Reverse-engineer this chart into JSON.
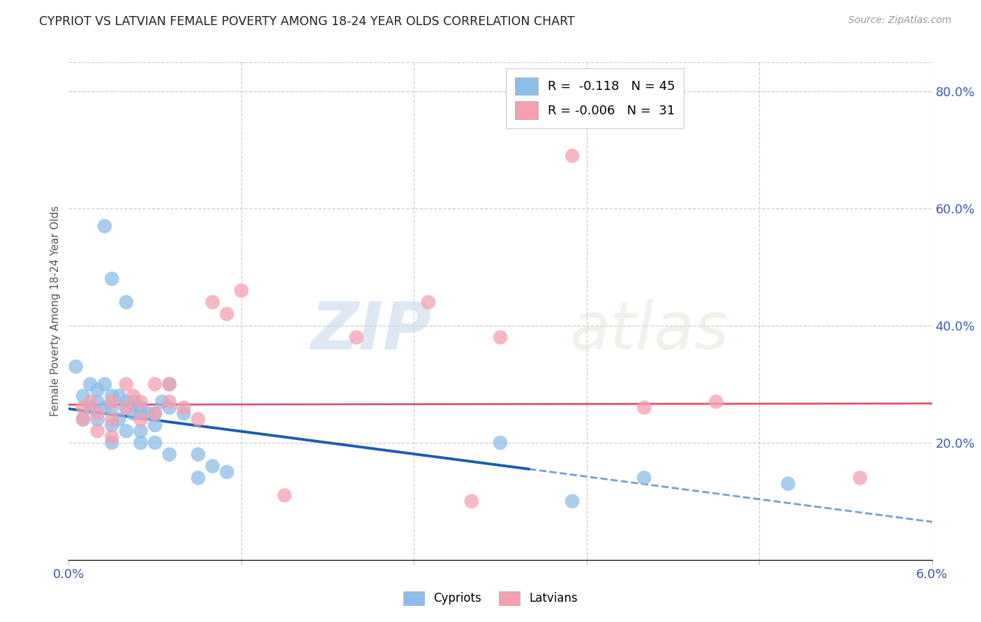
{
  "title": "CYPRIOT VS LATVIAN FEMALE POVERTY AMONG 18-24 YEAR OLDS CORRELATION CHART",
  "source": "Source: ZipAtlas.com",
  "ylabel": "Female Poverty Among 18-24 Year Olds",
  "xlim": [
    0.0,
    0.06
  ],
  "ylim": [
    0.0,
    0.85
  ],
  "xticks": [
    0.0,
    0.012,
    0.024,
    0.036,
    0.048,
    0.06
  ],
  "xticklabels": [
    "0.0%",
    "",
    "",
    "",
    "",
    "6.0%"
  ],
  "yticks_right": [
    0.2,
    0.4,
    0.6,
    0.8
  ],
  "ytick_right_labels": [
    "20.0%",
    "40.0%",
    "60.0%",
    "80.0%"
  ],
  "grid_color": "#cccccc",
  "background_color": "#ffffff",
  "cypriot_color": "#8bbde8",
  "latvian_color": "#f4a0b0",
  "cypriot_line_color": "#1a5cb0",
  "latvian_line_color": "#e05070",
  "legend_label_cypriot": "Cypriots",
  "legend_label_latvian": "Latvians",
  "R_cypriot": -0.118,
  "N_cypriot": 45,
  "R_latvian": -0.006,
  "N_latvian": 31,
  "watermark_zip": "ZIP",
  "watermark_atlas": "atlas",
  "cypriot_x": [
    0.0005,
    0.001,
    0.001,
    0.0015,
    0.0015,
    0.002,
    0.002,
    0.002,
    0.0025,
    0.0025,
    0.003,
    0.003,
    0.003,
    0.003,
    0.0035,
    0.0035,
    0.004,
    0.004,
    0.004,
    0.0045,
    0.0045,
    0.005,
    0.005,
    0.005,
    0.0055,
    0.006,
    0.006,
    0.0065,
    0.007,
    0.007,
    0.008,
    0.009,
    0.009,
    0.01,
    0.011,
    0.0025,
    0.003,
    0.004,
    0.005,
    0.006,
    0.007,
    0.03,
    0.04,
    0.05,
    0.035
  ],
  "cypriot_y": [
    0.33,
    0.28,
    0.24,
    0.3,
    0.26,
    0.29,
    0.27,
    0.24,
    0.3,
    0.26,
    0.28,
    0.26,
    0.23,
    0.2,
    0.28,
    0.24,
    0.27,
    0.26,
    0.22,
    0.27,
    0.25,
    0.26,
    0.25,
    0.22,
    0.25,
    0.25,
    0.23,
    0.27,
    0.3,
    0.26,
    0.25,
    0.18,
    0.14,
    0.16,
    0.15,
    0.57,
    0.48,
    0.44,
    0.2,
    0.2,
    0.18,
    0.2,
    0.14,
    0.13,
    0.1
  ],
  "latvian_x": [
    0.001,
    0.001,
    0.0015,
    0.002,
    0.002,
    0.003,
    0.003,
    0.003,
    0.004,
    0.004,
    0.0045,
    0.005,
    0.005,
    0.006,
    0.006,
    0.007,
    0.007,
    0.008,
    0.009,
    0.01,
    0.011,
    0.012,
    0.02,
    0.025,
    0.03,
    0.035,
    0.04,
    0.045,
    0.055,
    0.015,
    0.028
  ],
  "latvian_y": [
    0.26,
    0.24,
    0.27,
    0.25,
    0.22,
    0.27,
    0.24,
    0.21,
    0.3,
    0.26,
    0.28,
    0.27,
    0.24,
    0.3,
    0.25,
    0.3,
    0.27,
    0.26,
    0.24,
    0.44,
    0.42,
    0.46,
    0.38,
    0.44,
    0.38,
    0.69,
    0.26,
    0.27,
    0.14,
    0.11,
    0.1
  ]
}
